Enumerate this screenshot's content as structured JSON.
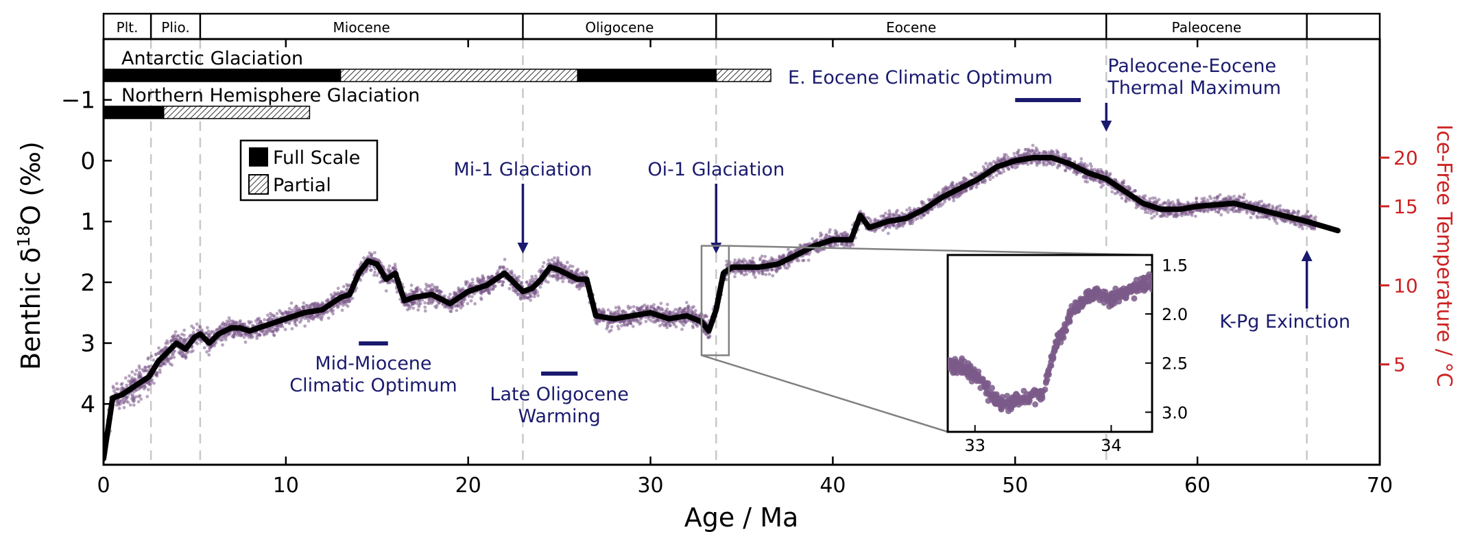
{
  "chart_data": {
    "type": "scatter",
    "xlabel": "Age / Ma",
    "ylabel_main": "Benthic δ",
    "ylabel_sup": "18",
    "ylabel_tail": "O (‰)",
    "y2label": "Ice-Free Temperature / °C",
    "xlim": [
      0,
      70
    ],
    "ylim": [
      5,
      -2
    ],
    "y_inverted": true,
    "x_ticks": [
      0,
      10,
      20,
      30,
      40,
      50,
      60,
      70
    ],
    "y_ticks": [
      -1,
      0,
      1,
      2,
      3,
      4
    ],
    "y_tick_labels": [
      "−1",
      "0",
      "1",
      "2",
      "3",
      "4"
    ],
    "y2_ticks": [
      {
        "temp": 20,
        "d18o": -0.05
      },
      {
        "temp": 15,
        "d18o": 0.75
      },
      {
        "temp": 10,
        "d18o": 2.05
      },
      {
        "temp": 5,
        "d18o": 3.35
      }
    ],
    "epochs": [
      {
        "label": "Plt.",
        "start": 0,
        "end": 2.6
      },
      {
        "label": "Plio.",
        "start": 2.6,
        "end": 5.3
      },
      {
        "label": "Miocene",
        "start": 5.3,
        "end": 23.0
      },
      {
        "label": "Oligocene",
        "start": 23.0,
        "end": 33.6
      },
      {
        "label": "Eocene",
        "start": 33.6,
        "end": 55.0
      },
      {
        "label": "Paleocene",
        "start": 55.0,
        "end": 66.0
      },
      {
        "label": "",
        "start": 66.0,
        "end": 70.0
      }
    ],
    "boundaries": [
      2.6,
      5.3,
      23.0,
      33.6,
      55.0,
      66.0
    ],
    "glaciation": {
      "antarctic_label": "Antarctic Glaciation",
      "northern_label": "Northern Hemisphere Glaciation",
      "antarctic": [
        {
          "start": 0,
          "end": 13.0,
          "kind": "full"
        },
        {
          "start": 13.0,
          "end": 26.0,
          "kind": "partial"
        },
        {
          "start": 26.0,
          "end": 33.6,
          "kind": "full"
        },
        {
          "start": 33.6,
          "end": 36.6,
          "kind": "partial"
        }
      ],
      "northern": [
        {
          "start": 0,
          "end": 3.3,
          "kind": "full"
        },
        {
          "start": 3.3,
          "end": 11.3,
          "kind": "partial"
        }
      ]
    },
    "legend": {
      "full": "Full Scale",
      "partial": "Partial"
    },
    "annotations": [
      {
        "id": "mi1",
        "label": "Mi-1 Glaciation",
        "x": 23.0
      },
      {
        "id": "oi1",
        "label": "Oi-1 Glaciation",
        "x": 33.6
      },
      {
        "id": "petm",
        "label_lines": [
          "Paleocene-Eocene",
          "Thermal Maximum"
        ],
        "x": 55.0
      },
      {
        "id": "kpg",
        "label": "K-Pg Exinction",
        "x": 66.0
      },
      {
        "id": "eeco",
        "label": "E. Eocene Climatic Optimum",
        "bar": [
          50.0,
          53.6
        ]
      },
      {
        "id": "mmco",
        "label_lines": [
          "Mid-Miocene",
          "Climatic Optimum"
        ],
        "bar": [
          14.0,
          15.6
        ]
      },
      {
        "id": "low",
        "label_lines": [
          "Late Oligocene",
          "Warming"
        ],
        "bar": [
          24.0,
          26.0
        ]
      }
    ],
    "smoothed_curve": {
      "x": [
        0,
        0.5,
        1,
        2,
        2.5,
        3,
        3.5,
        4,
        4.5,
        5,
        5.3,
        5.8,
        6.3,
        7,
        7.5,
        8,
        9,
        10,
        11,
        12,
        13,
        13.5,
        14,
        14.5,
        15,
        15.5,
        16,
        16.5,
        17,
        18,
        19,
        20,
        21,
        22,
        23,
        23.5,
        24,
        24.5,
        25,
        26,
        26.5,
        27,
        28,
        29,
        30,
        31,
        32,
        32.8,
        33.2,
        33.6,
        34,
        34.5,
        35,
        36,
        37,
        38,
        39,
        40,
        41,
        41.5,
        42,
        42.5,
        43,
        44,
        45,
        46,
        47,
        48,
        49,
        50,
        51,
        52,
        53,
        54,
        55,
        56,
        57,
        58,
        59,
        60,
        62,
        64,
        66,
        67.7
      ],
      "y": [
        4.9,
        3.9,
        3.85,
        3.65,
        3.55,
        3.3,
        3.15,
        3.0,
        3.1,
        2.9,
        2.85,
        3.0,
        2.85,
        2.75,
        2.75,
        2.8,
        2.7,
        2.6,
        2.5,
        2.45,
        2.25,
        2.2,
        1.85,
        1.65,
        1.7,
        1.95,
        1.85,
        2.3,
        2.25,
        2.2,
        2.35,
        2.15,
        2.05,
        1.85,
        2.15,
        2.1,
        1.95,
        1.75,
        1.8,
        1.95,
        1.95,
        2.55,
        2.6,
        2.55,
        2.5,
        2.6,
        2.55,
        2.65,
        2.8,
        2.45,
        1.85,
        1.75,
        1.75,
        1.75,
        1.7,
        1.55,
        1.4,
        1.3,
        1.3,
        0.9,
        1.1,
        1.05,
        1.0,
        0.95,
        0.8,
        0.6,
        0.45,
        0.3,
        0.1,
        0.0,
        -0.05,
        -0.05,
        0.05,
        0.2,
        0.3,
        0.5,
        0.7,
        0.8,
        0.8,
        0.75,
        0.7,
        0.85,
        1.0,
        1.15
      ]
    },
    "raw_noise": {
      "amplitude_d18o": 0.22,
      "points_per_ma": 90,
      "x_max": 66.5,
      "seed": 7
    },
    "inset": {
      "xlim": [
        32.8,
        34.3
      ],
      "ylim": [
        3.2,
        1.4
      ],
      "x_ticks": [
        33,
        34
      ],
      "y_ticks": [
        1.5,
        2.0,
        2.5,
        3.0
      ],
      "y_tick_labels": [
        "1.5",
        "2.0",
        "2.5",
        "3.0"
      ],
      "zoom_box": {
        "x": [
          32.8,
          34.3
        ],
        "y": [
          1.4,
          3.2
        ]
      },
      "trend_x": [
        32.8,
        32.9,
        33.0,
        33.1,
        33.2,
        33.3,
        33.4,
        33.5,
        33.6,
        33.7,
        33.8,
        33.9,
        34.0,
        34.1,
        34.2,
        34.3
      ],
      "trend_y": [
        2.5,
        2.55,
        2.62,
        2.8,
        2.92,
        2.88,
        2.85,
        2.8,
        2.3,
        2.0,
        1.85,
        1.8,
        1.85,
        1.78,
        1.72,
        1.68
      ]
    },
    "colors": {
      "scatter": "#7b5a8a",
      "curve": "#000000",
      "annotation": "#1a1a6e",
      "temperature_axis": "#cc2222",
      "boundary_dash": "#c8c8c8",
      "zoom_box": "#808080"
    }
  }
}
